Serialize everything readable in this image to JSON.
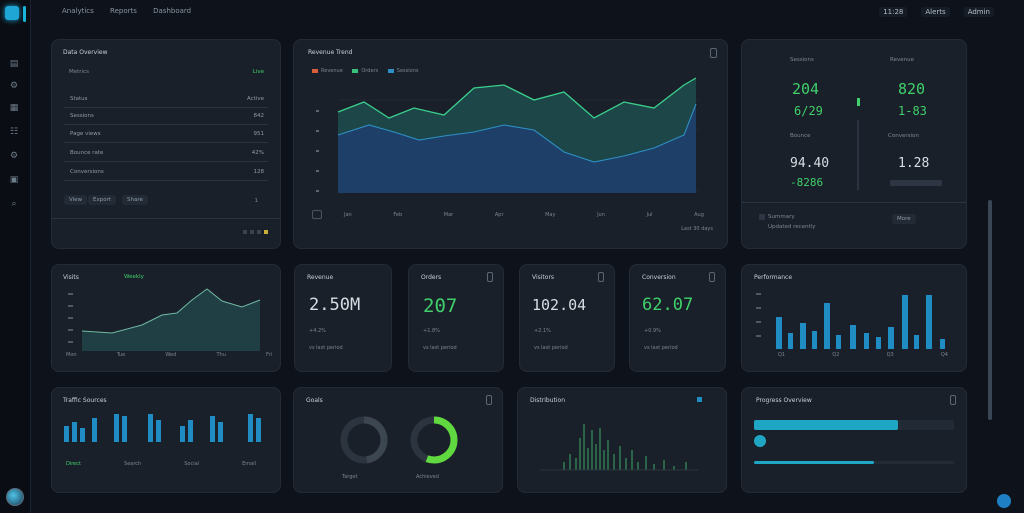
{
  "topnav": {
    "items": [
      "Analytics",
      "Reports",
      "Dashboard"
    ]
  },
  "topright": {
    "time": "11:28",
    "status": "Alerts",
    "profile": "Admin"
  },
  "table_panel": {
    "title": "Data Overview",
    "subtitle": "Metrics",
    "badge": "Live",
    "rows": [
      {
        "label": "Status",
        "value": "Active"
      },
      {
        "label": "Sessions",
        "value": "842"
      },
      {
        "label": "Page views",
        "value": "951"
      },
      {
        "label": "Bounce rate",
        "value": "42%"
      },
      {
        "label": "Conversions",
        "value": "128"
      }
    ],
    "buttons": [
      "View",
      "Export",
      "Share"
    ],
    "btn_count": "1"
  },
  "main_chart": {
    "title": "Revenue Trend",
    "legend": [
      "Revenue",
      "Orders",
      "Sessions"
    ],
    "x_labels": [
      "Jan",
      "Feb",
      "Mar",
      "Apr",
      "May",
      "Jun",
      "Jul",
      "Aug"
    ],
    "footer": "Last 30 days"
  },
  "stats_panel": {
    "col1_label": "Sessions",
    "col1_value": "204",
    "col1_sub": "6/29",
    "col1_label2": "Bounce",
    "col1_value2": "94.40",
    "col1_sub2": "-8286",
    "col2_label": "Revenue",
    "col2_value": "820",
    "col2_sub": "1-83",
    "col2_label2": "Conversion",
    "col2_value2": "1.28",
    "footer_left": "Summary",
    "footer_sub": "Updated recently",
    "footer_btn": "More"
  },
  "mini_area": {
    "title": "Visits",
    "badge": "Weekly",
    "x_labels": [
      "Mon",
      "Tue",
      "Wed",
      "Thu",
      "Fri"
    ]
  },
  "kpi": [
    {
      "title": "Revenue",
      "value": "2.50M",
      "delta": "+4.2%",
      "note": "vs last period",
      "color": "#d7dde3"
    },
    {
      "title": "Orders",
      "value": "207",
      "delta": "+1.8%",
      "note": "vs last period",
      "color": "#3fd06b"
    },
    {
      "title": "Visitors",
      "value": "102.04",
      "delta": "+2.1%",
      "note": "vs last period",
      "color": "#d7dde3"
    },
    {
      "title": "Conversion",
      "value": "62.07",
      "delta": "+0.9%",
      "note": "vs last period",
      "color": "#3fd06b"
    }
  ],
  "bar_panel": {
    "title": "Performance",
    "x_labels": [
      "Q1",
      "Q2",
      "Q3",
      "Q4"
    ]
  },
  "bottom_bars": {
    "title": "Traffic Sources",
    "labels": [
      "Direct",
      "Search",
      "Social",
      "Email"
    ]
  },
  "donut_panel": {
    "title": "Goals",
    "labels": [
      "Target",
      "Achieved"
    ]
  },
  "histogram": {
    "title": "Distribution"
  },
  "progress_panel": {
    "title": "Progress Overview",
    "progress_1": 0.72,
    "progress_2": 0.6
  },
  "colors": {
    "accent": "#1fa6d4",
    "green": "#3fd06b",
    "panel": "#1a2029"
  }
}
